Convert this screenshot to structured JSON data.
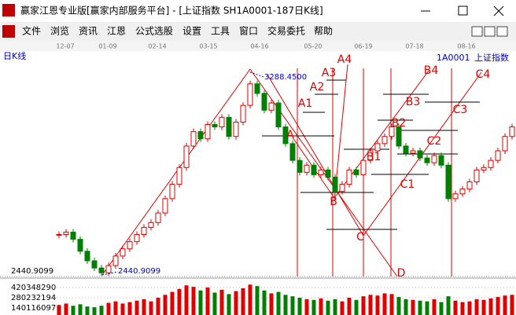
{
  "window": {
    "title": "赢家江恩专业版[赢家内部服务平台] - [上证指数  SH1A0001-187日K线]"
  },
  "menu": [
    "文件",
    "浏览",
    "资讯",
    "江恩",
    "公式选股",
    "设置",
    "工具",
    "窗口",
    "交易委托",
    "帮助"
  ],
  "chart": {
    "period": "日K线",
    "code": "1A0001",
    "name": "上证指数",
    "dates": [
      "12-07",
      "01-09",
      "02-14",
      "03-15",
      "04-16",
      "05-20",
      "06-19",
      "07-18",
      "08-16"
    ],
    "axis_price": 2440.9099,
    "low": {
      "value": 2440.9099,
      "label": "2440.9099"
    },
    "high": {
      "value": 3288.45,
      "label": "3288.4500"
    },
    "closes": [
      2610,
      2620,
      2590,
      2540,
      2500,
      2470,
      2450,
      2480,
      2520,
      2550,
      2580,
      2610,
      2640,
      2660,
      2700,
      2760,
      2820,
      2890,
      2980,
      3040,
      3010,
      3070,
      3060,
      3100,
      3020,
      3080,
      3150,
      3240,
      3200,
      3130,
      3160,
      3060,
      2990,
      2920,
      2870,
      2900,
      2860,
      2880,
      2850,
      2790,
      2820,
      2880,
      2860,
      2920,
      2960,
      2990,
      3020,
      3060,
      2980,
      2950,
      2960,
      2930,
      2910,
      2940,
      2900,
      2760,
      2780,
      2800,
      2830,
      2880,
      2890,
      2920,
      2960,
      3020,
      3060
    ],
    "volumes": [
      180000000,
      200000000,
      170000000,
      190000000,
      160000000,
      150000000,
      170000000,
      210000000,
      230000000,
      200000000,
      220000000,
      240000000,
      260000000,
      230000000,
      280000000,
      320000000,
      360000000,
      400000000,
      450000000,
      430000000,
      380000000,
      420000000,
      350000000,
      390000000,
      330000000,
      370000000,
      410000000,
      460000000,
      440000000,
      380000000,
      340000000,
      360000000,
      320000000,
      300000000,
      280000000,
      260000000,
      250000000,
      270000000,
      240000000,
      260000000,
      230000000,
      280000000,
      250000000,
      300000000,
      320000000,
      310000000,
      340000000,
      330000000,
      290000000,
      260000000,
      250000000,
      240000000,
      230000000,
      260000000,
      220000000,
      300000000,
      240000000,
      220000000,
      230000000,
      260000000,
      250000000,
      270000000,
      290000000,
      310000000,
      320000000
    ],
    "volume_ticks": [
      420348290,
      280232194,
      140116097
    ],
    "gann_labels": [
      "A",
      "A1",
      "A2",
      "A3",
      "A4",
      "B",
      "B1",
      "B2",
      "B3",
      "B4",
      "C",
      "C1",
      "C2",
      "C3",
      "C4",
      "D"
    ]
  }
}
